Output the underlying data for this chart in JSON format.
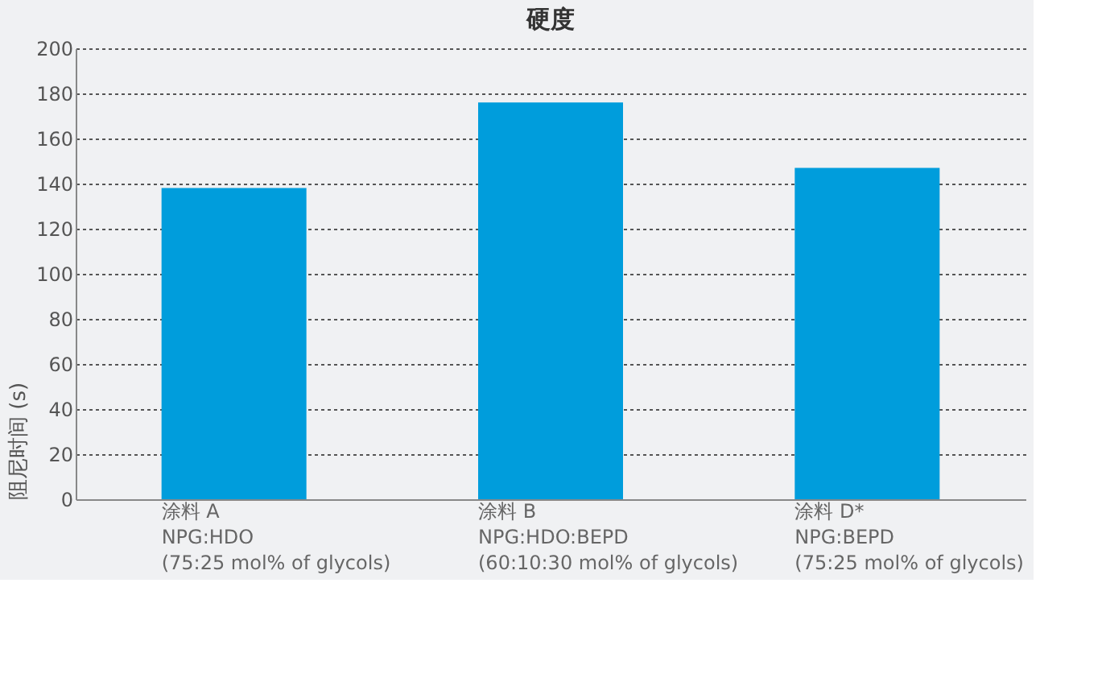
{
  "chart_data": {
    "type": "bar",
    "title": "硬度",
    "ylabel": "阻尼时间 (s)",
    "categories": [
      "涂料 A\nNPG:HDO\n(75:25 mol% of glycols)",
      "涂料 B\nNPG:HDO:BEPD\n(60:10:30 mol% of glycols)",
      "涂料 D*\nNPG:BEPD\n(75:25 mol% of glycols)"
    ],
    "values": [
      138,
      176,
      147
    ],
    "color": "#009ddc",
    "ylim": [
      0,
      200
    ],
    "yticks": [
      0,
      20,
      40,
      60,
      80,
      100,
      120,
      140,
      160,
      180,
      200
    ],
    "grid": "y"
  }
}
